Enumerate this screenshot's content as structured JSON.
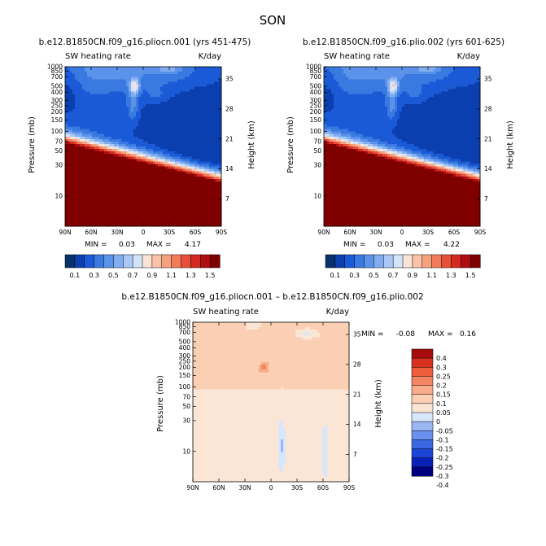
{
  "figure_title": "SON",
  "palettes": {
    "abs": [
      "#08306b",
      "#0b3fb0",
      "#1a5ad6",
      "#3a7ae0",
      "#5b93ea",
      "#82adf0",
      "#a9c8f5",
      "#d3e4fa",
      "#fbe3d6",
      "#fac3a8",
      "#f7a07e",
      "#f27c5a",
      "#e65039",
      "#d4291f",
      "#b00d12",
      "#800000"
    ],
    "diff": [
      "#00007f",
      "#0a22b5",
      "#1c45d6",
      "#3b68e2",
      "#6a91ee",
      "#9ab7f4",
      "#d6e7fb",
      "#fbe6d6",
      "#fbcfb3",
      "#f9ac8a",
      "#f58663",
      "#ee5d3e",
      "#d8311f",
      "#a80d0d"
    ]
  },
  "chart_data": [
    {
      "type": "heatmap",
      "id": "panel-1",
      "title": "b.e12.B1850CN.f09_g16.pliocn.001 (yrs 451-475)",
      "left_header": "SW heating rate",
      "right_header": "K/day",
      "ylabel": "Pressure (mb)",
      "ylabel_right": "Height (km)",
      "x_ticks": [
        "90N",
        "60N",
        "30N",
        "0",
        "30S",
        "60S",
        "90S"
      ],
      "y_ticks": [
        "10",
        "30",
        "50",
        "70",
        "100",
        "150",
        "200",
        "250",
        "300",
        "400",
        "500",
        "700",
        "850",
        "1000"
      ],
      "y_ticks_right": [
        "35",
        "28",
        "21",
        "14",
        "7"
      ],
      "min_label": "MIN =",
      "min_value": "0.03",
      "max_label": "MAX =",
      "max_value": "4.17",
      "colorbar_labels": [
        "0.1",
        "0.3",
        "0.5",
        "0.7",
        "0.9",
        "1.1",
        "1.3",
        "1.5"
      ],
      "colorbar_levels": [
        0.1,
        0.2,
        0.3,
        0.4,
        0.5,
        0.6,
        0.7,
        0.8,
        0.9,
        1.0,
        1.1,
        1.2,
        1.3,
        1.4,
        1.5
      ]
    },
    {
      "type": "heatmap",
      "id": "panel-2",
      "title": "b.e12.B1850CN.f09_g16.plio.002 (yrs 601-625)",
      "left_header": "SW heating rate",
      "right_header": "K/day",
      "ylabel": "Pressure (mb)",
      "ylabel_right": "Height (km)",
      "x_ticks": [
        "90N",
        "60N",
        "30N",
        "0",
        "30S",
        "60S",
        "90S"
      ],
      "y_ticks": [
        "10",
        "30",
        "50",
        "70",
        "100",
        "150",
        "200",
        "250",
        "300",
        "400",
        "500",
        "700",
        "850",
        "1000"
      ],
      "y_ticks_right": [
        "35",
        "28",
        "21",
        "14",
        "7"
      ],
      "min_label": "MIN =",
      "min_value": "0.03",
      "max_label": "MAX =",
      "max_value": "4.22",
      "colorbar_labels": [
        "0.1",
        "0.3",
        "0.5",
        "0.7",
        "0.9",
        "1.1",
        "1.3",
        "1.5"
      ],
      "colorbar_levels": [
        0.1,
        0.2,
        0.3,
        0.4,
        0.5,
        0.6,
        0.7,
        0.8,
        0.9,
        1.0,
        1.1,
        1.2,
        1.3,
        1.4,
        1.5
      ]
    },
    {
      "type": "heatmap",
      "id": "panel-3",
      "title": "b.e12.B1850CN.f09_g16.pliocn.001 – b.e12.B1850CN.f09_g16.plio.002",
      "left_header": "SW heating rate",
      "right_header": "K/day",
      "ylabel": "Pressure (mb)",
      "ylabel_right": "Height (km)",
      "x_ticks": [
        "90N",
        "60N",
        "30N",
        "0",
        "30S",
        "60S",
        "90S"
      ],
      "y_ticks": [
        "10",
        "30",
        "50",
        "70",
        "100",
        "150",
        "200",
        "250",
        "300",
        "400",
        "500",
        "700",
        "850",
        "1000"
      ],
      "y_ticks_right": [
        "35",
        "28",
        "21",
        "14",
        "7"
      ],
      "min_label": "MIN =",
      "min_value": "-0.08",
      "max_label": "MAX =",
      "max_value": "0.16",
      "colorbar_labels": [
        "0.4",
        "0.3",
        "0.25",
        "0.2",
        "0.15",
        "0.1",
        "0.05",
        "0",
        "-0.05",
        "-0.1",
        "-0.15",
        "-0.2",
        "-0.25",
        "-0.3",
        "-0.4"
      ],
      "colorbar_levels": [
        -0.4,
        -0.3,
        -0.25,
        -0.2,
        -0.15,
        -0.1,
        -0.05,
        0,
        0.05,
        0.1,
        0.15,
        0.2,
        0.25,
        0.3,
        0.4
      ]
    }
  ]
}
